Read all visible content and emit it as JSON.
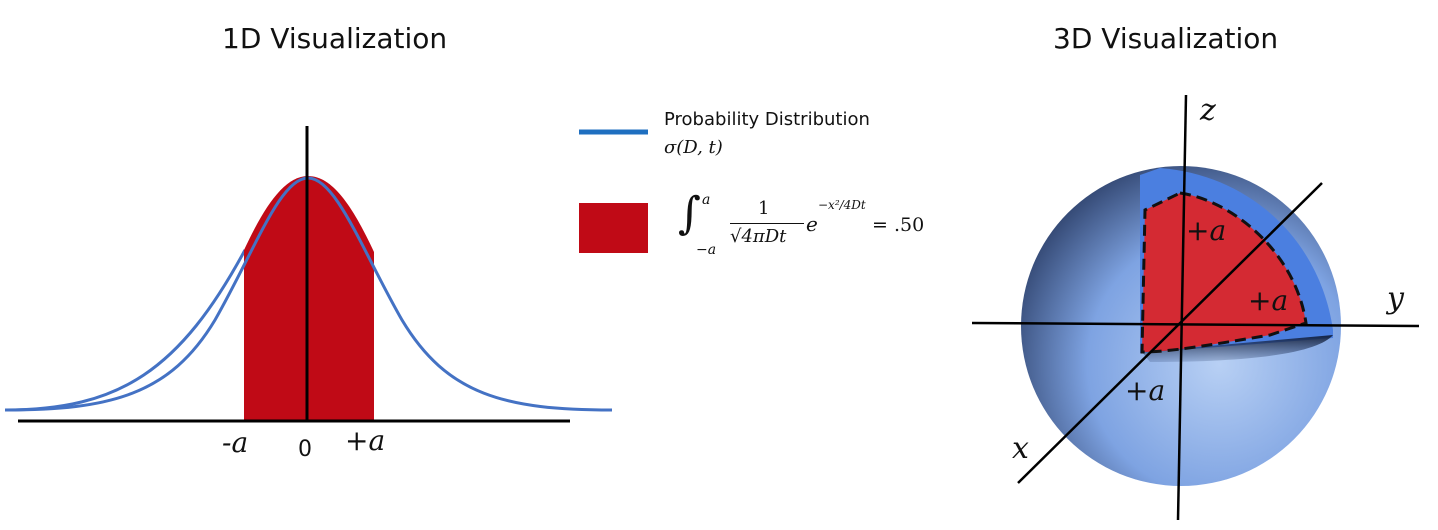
{
  "panel_1d": {
    "title": "1D Visualization",
    "tick_minus": "-a",
    "tick_zero": "0",
    "tick_plus": "+a"
  },
  "panel_3d": {
    "title": "3D Visualization",
    "axis_x": "x",
    "axis_y": "y",
    "axis_z": "z",
    "label_a_top": "+a",
    "label_a_right": "+a",
    "label_a_bottom": "+a"
  },
  "legend": {
    "line_label": "Probability Distribution",
    "line_symbol": "σ(D, t)",
    "area_integral_lower": "−a",
    "area_integral_upper": "a",
    "area_fraction_num": "1",
    "area_fraction_den": "√4πDt",
    "area_exponent": "−x²/4Dt",
    "area_equals": "= .50"
  },
  "colors": {
    "curve": "#4472c4",
    "fill": "#c00a16",
    "legend_line": "#1f6fc0",
    "sphere": "#6f95d9",
    "sphere_shell": "#4b7fe0",
    "wedge": "#d42a33"
  }
}
